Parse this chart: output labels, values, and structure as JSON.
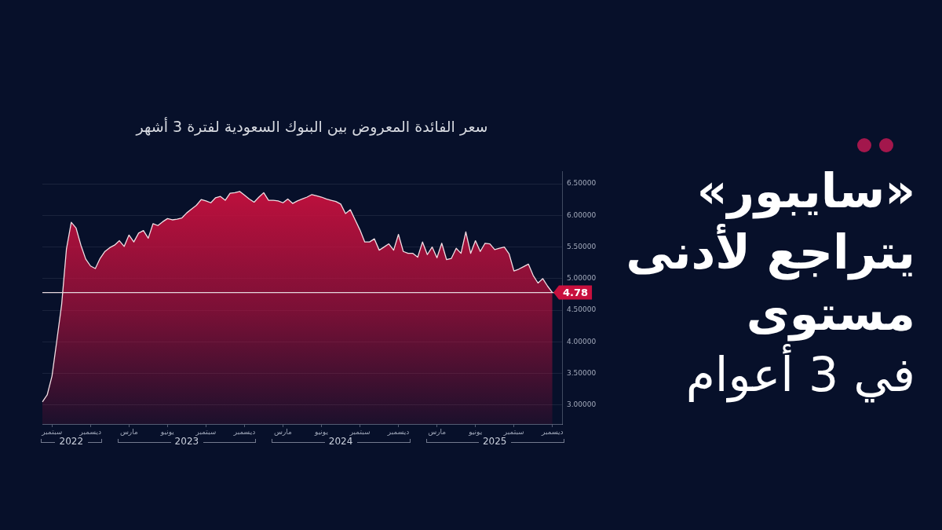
{
  "chart_data": {
    "type": "area",
    "title": "«سايبور»\nيتراجع لأدنى\nمستوى\nفي 3 أعوام",
    "subtitle": "سعر الفائدة المعروض بين البنوك السعودية لفترة 3 أشهر",
    "categories": [
      null,
      null,
      "سبتمبر",
      null,
      null,
      null,
      null,
      null,
      null,
      null,
      "ديسمبر",
      null,
      null,
      null,
      null,
      null,
      null,
      null,
      "مارس",
      null,
      null,
      null,
      null,
      null,
      null,
      null,
      "يونيو",
      null,
      null,
      null,
      null,
      null,
      null,
      null,
      "سبتمبر",
      null,
      null,
      null,
      null,
      null,
      null,
      null,
      "ديسمبر",
      null,
      null,
      null,
      null,
      null,
      null,
      null,
      "مارس",
      null,
      null,
      null,
      null,
      null,
      null,
      null,
      "يونيو",
      null,
      null,
      null,
      null,
      null,
      null,
      null,
      "سبتمبر",
      null,
      null,
      null,
      null,
      null,
      null,
      null,
      "ديسمبر",
      null,
      null,
      null,
      null,
      null,
      null,
      null,
      "مارس",
      null,
      null,
      null,
      null,
      null,
      null,
      null,
      "يونيو",
      null,
      null,
      null,
      null,
      null,
      null,
      null,
      "سبتمبر",
      null,
      null,
      null,
      null,
      null,
      null,
      null,
      "ديسمبر",
      null,
      null
    ],
    "values": [
      3.05,
      3.16,
      3.46,
      4.02,
      4.59,
      5.47,
      5.89,
      5.8,
      5.53,
      5.31,
      5.2,
      5.16,
      5.32,
      5.43,
      5.49,
      5.53,
      5.6,
      5.51,
      5.69,
      5.58,
      5.72,
      5.76,
      5.64,
      5.87,
      5.84,
      5.9,
      5.95,
      5.93,
      5.94,
      5.96,
      6.04,
      6.1,
      6.16,
      6.25,
      6.23,
      6.2,
      6.28,
      6.3,
      6.24,
      6.35,
      6.36,
      6.38,
      6.32,
      6.26,
      6.21,
      6.29,
      6.36,
      6.24,
      6.24,
      6.23,
      6.2,
      6.26,
      6.19,
      6.23,
      6.26,
      6.29,
      6.33,
      6.31,
      6.29,
      6.26,
      6.24,
      6.22,
      6.18,
      6.03,
      6.09,
      5.93,
      5.77,
      5.58,
      5.58,
      5.63,
      5.45,
      5.5,
      5.55,
      5.45,
      5.7,
      5.43,
      5.4,
      5.4,
      5.34,
      5.58,
      5.38,
      5.5,
      5.33,
      5.56,
      5.3,
      5.32,
      5.48,
      5.4,
      5.74,
      5.4,
      5.6,
      5.43,
      5.56,
      5.55,
      5.46,
      5.48,
      5.5,
      5.39,
      5.12,
      5.15,
      5.19,
      5.23,
      5.05,
      4.93,
      5.0,
      4.88,
      4.78,
      null,
      null
    ],
    "color": "#c8103e",
    "ylim": [
      2.7,
      6.7
    ],
    "yticks": [
      {
        "value": 3,
        "label": "3.00000"
      },
      {
        "value": 3.5,
        "label": "3.50000"
      },
      {
        "value": 4,
        "label": "4.00000"
      },
      {
        "value": 4.5,
        "label": "4.50000"
      },
      {
        "value": 5,
        "label": "5.00000"
      },
      {
        "value": 5.5,
        "label": "5.50000"
      },
      {
        "value": 6,
        "label": "6.00000"
      },
      {
        "value": 6.5,
        "label": "6.50000"
      }
    ],
    "ref_lines": [
      {
        "axis": "y",
        "value": 4.78,
        "label": "4.78",
        "color": "#e6d8dd"
      }
    ],
    "annotations": [
      "2022",
      "2023",
      "2024",
      "2025"
    ],
    "grid": "y"
  }
}
